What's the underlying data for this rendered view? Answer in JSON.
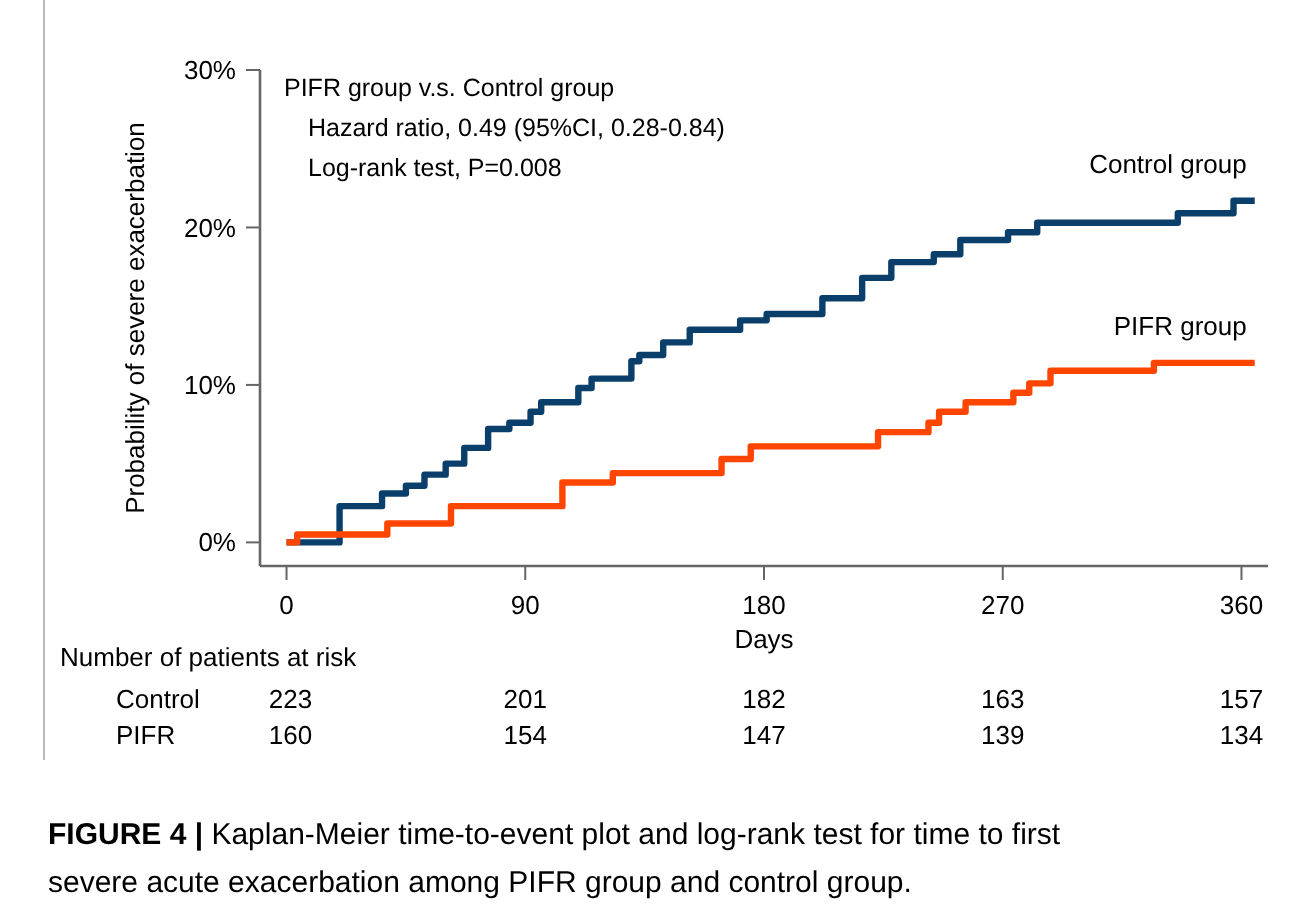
{
  "chart_data": {
    "type": "step",
    "xlabel": "Days",
    "ylabel": "Probability of severe exacerbation",
    "xlim": [
      -10,
      370
    ],
    "xticks": [
      0,
      90,
      180,
      270,
      360
    ],
    "ylim": [
      -1.5,
      30
    ],
    "yticks": [
      {
        "value": 0,
        "label": "0%"
      },
      {
        "value": 10,
        "label": "10%"
      },
      {
        "value": 20,
        "label": "20%"
      },
      {
        "value": 30,
        "label": "30%"
      }
    ],
    "grid": false,
    "legend": false,
    "line_style": "solid",
    "marker": "none",
    "series": [
      {
        "name": "Control group",
        "color": "#0b3f6b",
        "x": [
          0,
          20,
          36,
          45,
          52,
          60,
          67,
          76,
          84,
          92,
          96,
          110,
          115,
          130,
          133,
          142,
          152,
          171,
          181,
          202,
          217,
          228,
          244,
          254,
          272,
          283,
          336,
          357,
          365
        ],
        "values": [
          0,
          2.3,
          3.1,
          3.6,
          4.3,
          5.0,
          6.0,
          7.2,
          7.6,
          8.3,
          8.9,
          9.8,
          10.4,
          11.5,
          11.9,
          12.7,
          13.5,
          14.1,
          14.5,
          15.5,
          16.8,
          17.8,
          18.3,
          19.2,
          19.7,
          20.3,
          20.9,
          21.7,
          21.7
        ]
      },
      {
        "name": "PIFR group",
        "color": "#ff4500",
        "x": [
          0,
          4,
          38,
          62,
          104,
          123,
          164,
          175,
          223,
          242,
          246,
          256,
          274,
          280,
          288,
          327,
          365
        ],
        "values": [
          0,
          0.5,
          1.2,
          2.3,
          3.8,
          4.4,
          5.3,
          6.1,
          7.0,
          7.6,
          8.3,
          8.9,
          9.5,
          10.1,
          10.9,
          11.4,
          11.4
        ]
      }
    ],
    "annotations": [
      "PIFR group v.s. Control group",
      "Hazard ratio, 0.49 (95%CI, 0.28-0.84)",
      "Log-rank test, P=0.008",
      "Number of patients at risk",
      "Control",
      "223",
      "201",
      "182",
      "163",
      "157",
      "PIFR",
      "160",
      "154",
      "147",
      "139",
      "134",
      "FIGURE 4 | Kaplan-Meier time-to-event plot and log-rank test for time to first severe acute exacerbation among PIFR group and control group."
    ]
  }
}
